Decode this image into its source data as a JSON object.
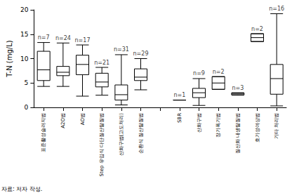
{
  "chart_data": {
    "type": "boxplot",
    "y_label": "T-N (mg/L)",
    "source_note": "자료: 저자 작성.",
    "categories": [
      "표준활성슬러지법",
      "A2O법",
      "AO법",
      "Step 유입식 다단질산탈질법",
      "산화구법(고도처리)",
      "순환식 질산탈질법",
      null,
      "SBR",
      "산화구법",
      "장기폭기법",
      "질산화 내생탈질법",
      "호기성여상법",
      "기타 처리법"
    ],
    "values": [
      [
        4.3,
        5.5,
        7.7,
        11.5,
        13.3
      ],
      [
        4.3,
        6.5,
        7.2,
        8.4,
        13.2
      ],
      [
        2.3,
        6.7,
        8.8,
        10.7,
        12.8
      ],
      [
        2.5,
        4.2,
        5.2,
        7.0,
        8.2
      ],
      [
        0.5,
        1.5,
        2.6,
        4.6,
        10.8
      ],
      [
        3.6,
        5.5,
        6.2,
        7.9,
        10.0
      ],
      null,
      [
        1.5,
        1.5,
        1.5,
        1.5,
        1.5
      ],
      [
        0.4,
        2.0,
        3.0,
        3.9,
        5.9
      ],
      [
        3.7,
        3.7,
        5.0,
        6.3,
        6.3
      ],
      [
        2.5,
        2.6,
        2.9,
        2.9,
        3.0
      ],
      [
        13.5,
        13.5,
        14.3,
        15.1,
        15.1
      ],
      [
        0.3,
        2.7,
        5.9,
        8.8,
        19.2
      ]
    ],
    "n_labels": [
      "n=7",
      "n=24",
      "n=17",
      "n=21",
      "n=31",
      "n=29",
      null,
      "n=1",
      "n=9",
      "n=2",
      "n=3",
      "n=2",
      "n=16"
    ],
    "color": "#000000",
    "ylim": [
      0,
      20
    ],
    "yticks": [
      0,
      5,
      10,
      15,
      20
    ],
    "grid": false
  }
}
